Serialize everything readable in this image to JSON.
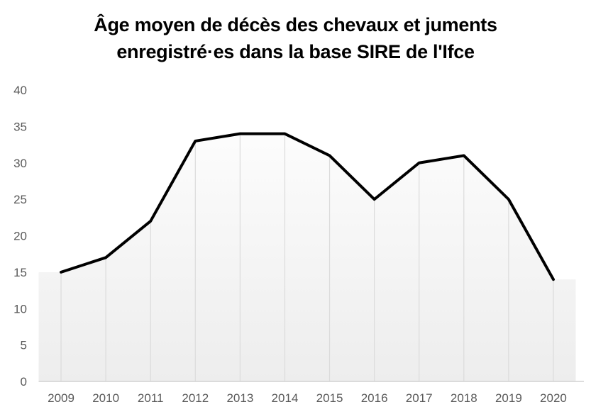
{
  "title": {
    "line1": "Âge moyen de décès des chevaux et juments",
    "line2": "enregistré·es dans la base SIRE de l'Ifce"
  },
  "chart_data": {
    "type": "line",
    "title": "Âge moyen de décès des chevaux et juments enregistré·es dans la base SIRE de l'Ifce",
    "categories": [
      "2009",
      "2010",
      "2011",
      "2012",
      "2013",
      "2014",
      "2015",
      "2016",
      "2017",
      "2018",
      "2019",
      "2020"
    ],
    "values": [
      15,
      17,
      22,
      33,
      34,
      34,
      31,
      25,
      30,
      31,
      25,
      14
    ],
    "xlabel": "",
    "ylabel": "",
    "ylim": [
      0,
      40
    ],
    "yticks": [
      0,
      5,
      10,
      15,
      20,
      25,
      30,
      35,
      40
    ],
    "grid": "drop-lines-only",
    "legend": "none",
    "colors": {
      "line": "#000000",
      "axis_text": "#595959",
      "drop_line": "#dbdbdb",
      "axis_line": "#d2d2d2",
      "fill_top": "#ffffff",
      "fill_bottom": "#ededed"
    }
  }
}
